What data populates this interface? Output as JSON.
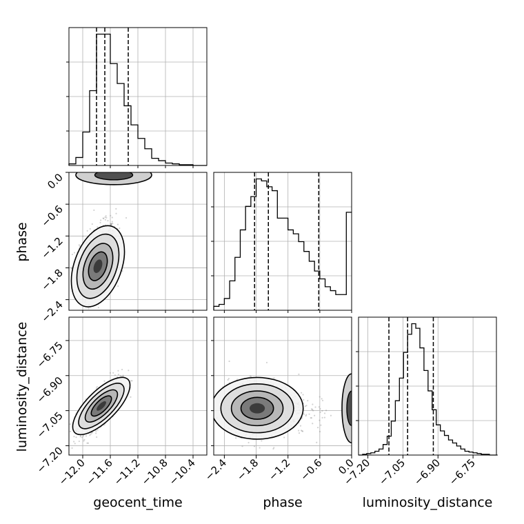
{
  "chart_data": {
    "type": "corner",
    "parameters": [
      "geocent_time",
      "phase",
      "luminosity_distance"
    ],
    "axis_titles": {
      "bottom": [
        "geocent_time",
        "phase",
        "luminosity_distance"
      ],
      "left": [
        "phase",
        "luminosity_distance"
      ]
    },
    "ranges": {
      "geocent_time": [
        -12.2,
        -10.2
      ],
      "phase": [
        -2.6,
        0.0
      ],
      "luminosity_distance": [
        -7.24,
        -6.65
      ]
    },
    "ticks": {
      "geocent_time": [
        {
          "v": -12.0,
          "label": "−12.0"
        },
        {
          "v": -11.6,
          "label": "−11.6"
        },
        {
          "v": -11.2,
          "label": "−11.2"
        },
        {
          "v": -10.8,
          "label": "−10.8"
        },
        {
          "v": -10.4,
          "label": "−10.4"
        }
      ],
      "phase": [
        {
          "v": -2.4,
          "label": "−2.4"
        },
        {
          "v": -1.8,
          "label": "−1.8"
        },
        {
          "v": -1.2,
          "label": "−1.2"
        },
        {
          "v": -0.6,
          "label": "−0.6"
        },
        {
          "v": 0.0,
          "label": "0.0"
        }
      ],
      "luminosity_distance": [
        {
          "v": -7.2,
          "label": "−7.20"
        },
        {
          "v": -7.05,
          "label": "−7.05"
        },
        {
          "v": -6.9,
          "label": "−6.90"
        },
        {
          "v": -6.75,
          "label": "−6.75"
        }
      ]
    },
    "histograms": {
      "geocent_time": {
        "edges": [
          -12.2,
          -12.1,
          -12.0,
          -11.9,
          -11.8,
          -11.7,
          -11.6,
          -11.5,
          -11.4,
          -11.3,
          -11.2,
          -11.1,
          -11.0,
          -10.9,
          -10.8,
          -10.7,
          -10.6,
          -10.5,
          -10.4,
          -10.3,
          -10.2
        ],
        "counts": [
          2,
          10,
          42,
          94,
          165,
          165,
          128,
          103,
          75,
          51,
          34,
          21,
          9,
          6,
          3,
          2,
          1,
          1,
          0,
          0
        ],
        "quantiles": [
          -11.8,
          -11.68,
          -11.34
        ]
      },
      "phase": {
        "edges": [
          -2.6,
          -2.5,
          -2.4,
          -2.3,
          -2.2,
          -2.1,
          -2.0,
          -1.9,
          -1.8,
          -1.7,
          -1.6,
          -1.5,
          -1.4,
          -1.3,
          -1.2,
          -1.1,
          -1.0,
          -0.9,
          -0.8,
          -0.7,
          -0.6,
          -0.5,
          -0.4,
          -0.3,
          -0.2,
          -0.1,
          0.0
        ],
        "counts": [
          2,
          3,
          6,
          15,
          27,
          41,
          53,
          58,
          67,
          66,
          63,
          61,
          47,
          47,
          41,
          39,
          35,
          30,
          25,
          20,
          16,
          12,
          10,
          8,
          8,
          50
        ],
        "quantiles": [
          -1.83,
          -1.57,
          -0.62
        ]
      },
      "luminosity_distance": {
        "edges": [
          -7.24,
          -7.2225,
          -7.205,
          -7.1875,
          -7.17,
          -7.1525,
          -7.135,
          -7.1175,
          -7.1,
          -7.0825,
          -7.065,
          -7.0475,
          -7.03,
          -7.0125,
          -6.995,
          -6.9775,
          -6.96,
          -6.9425,
          -6.925,
          -6.9075,
          -6.89,
          -6.8725,
          -6.855,
          -6.8375,
          -6.82,
          -6.8025,
          -6.785,
          -6.7675,
          -6.75,
          -6.7325,
          -6.715,
          -6.6975,
          -6.68,
          -6.6625,
          -6.645
        ],
        "counts": [
          0,
          1,
          2,
          3,
          5,
          8,
          14,
          25,
          45,
          72,
          102,
          136,
          160,
          174,
          168,
          142,
          112,
          85,
          60,
          40,
          32,
          26,
          20,
          16,
          12,
          8,
          5,
          4,
          3,
          2,
          1,
          1,
          0,
          0
        ],
        "quantiles": [
          -7.11,
          -7.03,
          -6.92
        ]
      }
    },
    "contours": {
      "phase_vs_geocent_time": {
        "peak": [
          -11.78,
          -1.77
        ],
        "levels": [
          "0.5 sigma",
          "1 sigma",
          "1.5 sigma",
          "2 sigma"
        ],
        "secondary_mode": [
          -11.55,
          -0.05
        ]
      },
      "luminosity_distance_vs_geocent_time": {
        "peak": [
          -11.73,
          -7.03
        ],
        "levels": [
          "0.5 sigma",
          "1 sigma",
          "1.5 sigma",
          "2 sigma"
        ]
      },
      "luminosity_distance_vs_phase": {
        "peak": [
          -1.78,
          -7.04
        ],
        "levels": [
          "0.5 sigma",
          "1 sigma",
          "1.5 sigma",
          "2 sigma"
        ],
        "secondary_mode": [
          0.0,
          -7.04
        ]
      }
    },
    "grid": true,
    "colors": {
      "line": "#000000",
      "grid": "#b0b0b0",
      "scatter": "#7f7f7f"
    }
  }
}
